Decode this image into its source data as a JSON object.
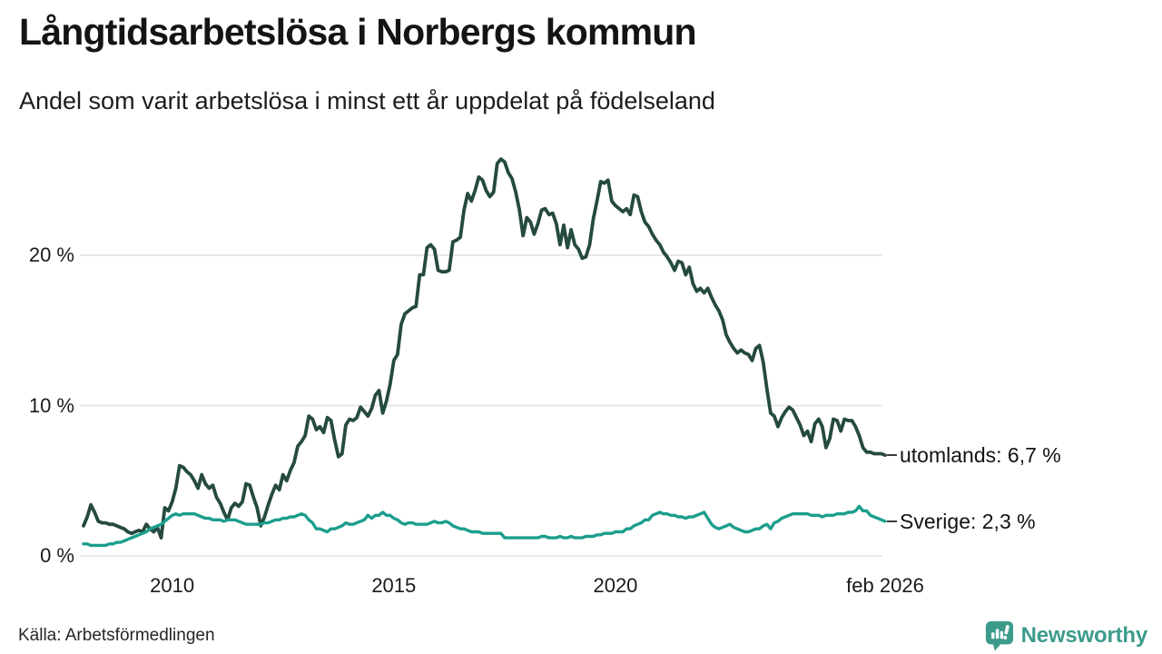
{
  "header": {
    "title": "Långtidsarbetslösa i Norbergs kommun",
    "subtitle": "Andel som varit arbetslösa i minst ett år uppdelat på födelseland"
  },
  "footer": {
    "source": "Källa: Arbetsförmedlingen",
    "brand": "Newsworthy"
  },
  "colors": {
    "utomlands_line": "#254a40",
    "sverige_line": "#1c9e8d",
    "grid": "#e8e8e8",
    "brand": "#3d9b8c"
  },
  "chart_data": {
    "type": "line",
    "title": "Långtidsarbetslösa i Norbergs kommun",
    "subtitle": "Andel som varit arbetslösa i minst ett år uppdelat på födelseland",
    "x_unit": "month",
    "x_start": "2008-01",
    "x_end": "2026-02",
    "ylim": [
      0,
      27.5
    ],
    "y_ticks": [
      0,
      10,
      20
    ],
    "y_tick_labels": [
      "0 %",
      "10 %",
      "20 %"
    ],
    "x_ticks": [
      {
        "label": "2010",
        "month_index": 24
      },
      {
        "label": "2015",
        "month_index": 84
      },
      {
        "label": "2020",
        "month_index": 144
      },
      {
        "label": "feb 2026",
        "month_index": 217
      }
    ],
    "legend_position": "right-end-labels",
    "grid": "horizontal-only",
    "series": [
      {
        "name": "utomlands",
        "end_label": "utomlands: 6,7 %",
        "last_value": 6.7,
        "color": "#254a40",
        "values": [
          2.0,
          2.6,
          3.4,
          2.9,
          2.3,
          2.2,
          2.2,
          2.1,
          2.1,
          2.0,
          1.9,
          1.8,
          1.6,
          1.5,
          1.6,
          1.7,
          1.6,
          2.1,
          1.8,
          1.6,
          1.9,
          1.2,
          3.2,
          3.0,
          3.6,
          4.5,
          6.0,
          5.9,
          5.6,
          5.4,
          5.0,
          4.5,
          5.4,
          4.8,
          4.5,
          4.7,
          3.9,
          3.5,
          2.9,
          2.4,
          3.2,
          3.5,
          3.3,
          3.6,
          4.8,
          4.7,
          3.9,
          3.2,
          2.0,
          2.6,
          3.4,
          4.1,
          4.7,
          4.4,
          5.4,
          5.0,
          5.7,
          6.2,
          7.3,
          7.6,
          8.0,
          9.3,
          9.1,
          8.4,
          8.6,
          8.2,
          9.2,
          9.0,
          7.7,
          6.6,
          6.8,
          8.7,
          9.1,
          9.0,
          9.2,
          9.9,
          9.6,
          9.3,
          9.8,
          10.7,
          11.0,
          9.5,
          10.3,
          11.4,
          13.0,
          13.4,
          15.4,
          16.1,
          16.3,
          16.5,
          16.6,
          18.7,
          18.7,
          20.5,
          20.7,
          20.4,
          19.0,
          18.9,
          18.9,
          19.0,
          20.9,
          21.0,
          21.2,
          23.0,
          24.1,
          23.6,
          24.3,
          25.2,
          25.0,
          24.3,
          23.9,
          24.2,
          26.1,
          26.4,
          26.2,
          25.5,
          25.1,
          24.2,
          23.0,
          21.3,
          22.5,
          22.2,
          21.4,
          22.1,
          23.0,
          23.1,
          22.7,
          22.8,
          22.1,
          20.7,
          22.0,
          20.5,
          21.7,
          20.7,
          20.4,
          19.8,
          19.9,
          20.7,
          22.4,
          23.6,
          24.9,
          24.8,
          25.0,
          23.6,
          23.3,
          23.1,
          22.9,
          23.1,
          22.7,
          24.0,
          23.9,
          22.9,
          22.2,
          21.9,
          21.4,
          21.0,
          20.7,
          20.2,
          19.9,
          19.5,
          19.0,
          19.6,
          19.5,
          18.7,
          19.2,
          18.1,
          17.6,
          17.8,
          17.5,
          17.8,
          17.2,
          16.7,
          16.3,
          15.7,
          14.7,
          14.2,
          13.8,
          13.5,
          13.7,
          13.5,
          13.4,
          13.0,
          13.8,
          14.0,
          12.9,
          11.1,
          9.5,
          9.3,
          8.6,
          9.2,
          9.6,
          9.9,
          9.7,
          9.2,
          8.7,
          8.0,
          8.3,
          7.6,
          8.8,
          9.1,
          8.6,
          7.2,
          7.8,
          9.1,
          9.0,
          8.3,
          9.1,
          9.0,
          9.0,
          8.6,
          8.0,
          7.2,
          6.9,
          6.9,
          6.8,
          6.8,
          6.8,
          6.7
        ]
      },
      {
        "name": "Sverige",
        "end_label": "Sverige: 2,3 %",
        "last_value": 2.3,
        "color": "#1c9e8d",
        "values": [
          0.8,
          0.8,
          0.7,
          0.7,
          0.7,
          0.7,
          0.7,
          0.8,
          0.8,
          0.9,
          0.9,
          1.0,
          1.1,
          1.2,
          1.3,
          1.4,
          1.5,
          1.6,
          1.8,
          1.9,
          2.0,
          2.1,
          2.3,
          2.5,
          2.7,
          2.8,
          2.7,
          2.8,
          2.8,
          2.8,
          2.8,
          2.7,
          2.6,
          2.5,
          2.5,
          2.4,
          2.4,
          2.4,
          2.3,
          2.4,
          2.4,
          2.4,
          2.3,
          2.2,
          2.1,
          2.1,
          2.1,
          2.1,
          2.1,
          2.2,
          2.2,
          2.3,
          2.4,
          2.4,
          2.5,
          2.5,
          2.6,
          2.6,
          2.7,
          2.8,
          2.7,
          2.4,
          2.2,
          1.8,
          1.8,
          1.7,
          1.6,
          1.8,
          1.8,
          1.9,
          2.0,
          2.2,
          2.1,
          2.1,
          2.2,
          2.3,
          2.4,
          2.7,
          2.5,
          2.7,
          2.7,
          2.9,
          2.7,
          2.7,
          2.5,
          2.4,
          2.2,
          2.1,
          2.2,
          2.2,
          2.1,
          2.1,
          2.1,
          2.1,
          2.2,
          2.3,
          2.2,
          2.2,
          2.3,
          2.2,
          2.0,
          1.9,
          1.8,
          1.8,
          1.7,
          1.6,
          1.6,
          1.6,
          1.5,
          1.5,
          1.5,
          1.5,
          1.5,
          1.5,
          1.2,
          1.2,
          1.2,
          1.2,
          1.2,
          1.2,
          1.2,
          1.2,
          1.2,
          1.2,
          1.3,
          1.3,
          1.2,
          1.2,
          1.2,
          1.3,
          1.2,
          1.2,
          1.3,
          1.2,
          1.2,
          1.2,
          1.3,
          1.3,
          1.3,
          1.4,
          1.4,
          1.5,
          1.5,
          1.5,
          1.6,
          1.6,
          1.6,
          1.8,
          1.8,
          2.0,
          2.1,
          2.2,
          2.4,
          2.4,
          2.7,
          2.8,
          2.9,
          2.8,
          2.8,
          2.7,
          2.7,
          2.6,
          2.6,
          2.5,
          2.6,
          2.6,
          2.7,
          2.8,
          2.9,
          2.5,
          2.1,
          1.9,
          1.8,
          1.9,
          2.0,
          2.1,
          1.9,
          1.8,
          1.7,
          1.6,
          1.6,
          1.7,
          1.8,
          1.8,
          2.0,
          2.1,
          1.8,
          2.2,
          2.3,
          2.5,
          2.6,
          2.7,
          2.8,
          2.8,
          2.8,
          2.8,
          2.8,
          2.7,
          2.7,
          2.7,
          2.6,
          2.7,
          2.7,
          2.7,
          2.8,
          2.8,
          2.8,
          2.9,
          2.9,
          3.0,
          3.3,
          3.0,
          3.0,
          2.7,
          2.6,
          2.5,
          2.4,
          2.3
        ]
      }
    ]
  }
}
